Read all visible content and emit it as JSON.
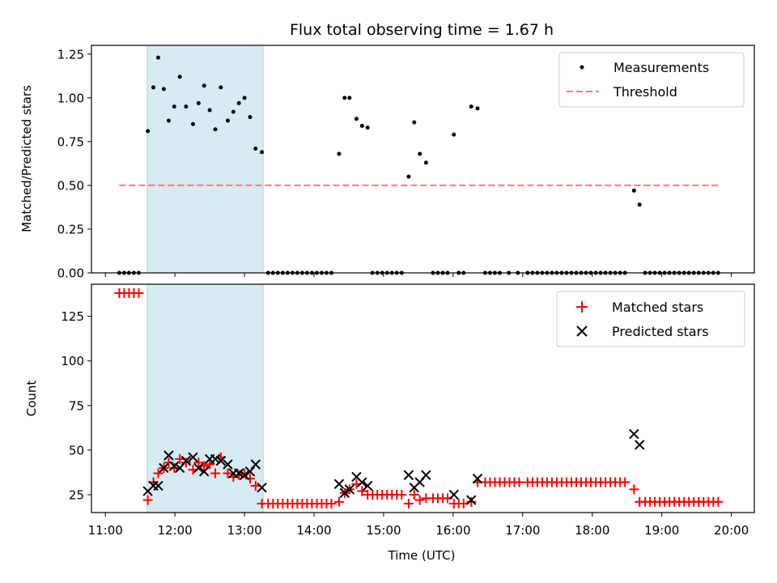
{
  "chart_data": [
    {
      "type": "scatter",
      "title": "Flux total observing time = 1.67 h",
      "ylabel": "Matched/Predicted stars",
      "xlabel": "",
      "ylim": [
        0,
        1.3
      ],
      "yticks": [
        0.0,
        0.25,
        0.5,
        0.75,
        1.0,
        1.25
      ],
      "xticks_hours": [
        11,
        12,
        13,
        14,
        15,
        16,
        17,
        18,
        19,
        20
      ],
      "xlim_hours": [
        10.8,
        20.33
      ],
      "shaded_interval_hours": [
        11.6,
        13.27
      ],
      "legend_position": "top-right",
      "legend": [
        "Measurements",
        "Threshold"
      ],
      "threshold": {
        "name": "Threshold",
        "value": 0.5,
        "x_range_hours": [
          11.2,
          19.85
        ],
        "color": "#f08080"
      },
      "series": [
        {
          "name": "Measurements",
          "color": "#000000",
          "points": [
            [
              11.2,
              0
            ],
            [
              11.27,
              0
            ],
            [
              11.34,
              0
            ],
            [
              11.41,
              0
            ],
            [
              11.48,
              0
            ],
            [
              11.61,
              0.81
            ],
            [
              11.69,
              1.06
            ],
            [
              11.76,
              1.23
            ],
            [
              11.84,
              1.05
            ],
            [
              11.91,
              0.87
            ],
            [
              11.99,
              0.95
            ],
            [
              12.07,
              1.12
            ],
            [
              12.16,
              0.95
            ],
            [
              12.26,
              0.85
            ],
            [
              12.34,
              0.97
            ],
            [
              12.42,
              1.07
            ],
            [
              12.5,
              0.93
            ],
            [
              12.58,
              0.82
            ],
            [
              12.66,
              1.06
            ],
            [
              12.76,
              0.87
            ],
            [
              12.84,
              0.92
            ],
            [
              12.92,
              0.97
            ],
            [
              13.0,
              1.0
            ],
            [
              13.08,
              0.89
            ],
            [
              13.16,
              0.71
            ],
            [
              13.25,
              0.69
            ],
            [
              13.34,
              0
            ],
            [
              13.41,
              0
            ],
            [
              13.48,
              0
            ],
            [
              13.55,
              0
            ],
            [
              13.62,
              0
            ],
            [
              13.69,
              0
            ],
            [
              13.76,
              0
            ],
            [
              13.83,
              0
            ],
            [
              13.9,
              0
            ],
            [
              13.97,
              0
            ],
            [
              14.04,
              0
            ],
            [
              14.11,
              0
            ],
            [
              14.18,
              0
            ],
            [
              14.25,
              0
            ],
            [
              14.36,
              0.68
            ],
            [
              14.44,
              1.0
            ],
            [
              14.51,
              1.0
            ],
            [
              14.61,
              0.88
            ],
            [
              14.69,
              0.84
            ],
            [
              14.77,
              0.83
            ],
            [
              14.84,
              0
            ],
            [
              14.91,
              0
            ],
            [
              14.98,
              0
            ],
            [
              15.05,
              0
            ],
            [
              15.12,
              0
            ],
            [
              15.19,
              0
            ],
            [
              15.26,
              0
            ],
            [
              15.36,
              0.55
            ],
            [
              15.44,
              0.86
            ],
            [
              15.52,
              0.68
            ],
            [
              15.61,
              0.63
            ],
            [
              15.71,
              0
            ],
            [
              15.78,
              0
            ],
            [
              15.85,
              0
            ],
            [
              15.92,
              0
            ],
            [
              16.01,
              0.79
            ],
            [
              16.08,
              0
            ],
            [
              16.15,
              0
            ],
            [
              16.26,
              0.95
            ],
            [
              16.35,
              0.94
            ],
            [
              16.46,
              0
            ],
            [
              16.53,
              0
            ],
            [
              16.6,
              0
            ],
            [
              16.67,
              0
            ],
            [
              16.8,
              0
            ],
            [
              16.93,
              0
            ],
            [
              17.07,
              0
            ],
            [
              17.14,
              0
            ],
            [
              17.21,
              0
            ],
            [
              17.28,
              0
            ],
            [
              17.35,
              0
            ],
            [
              17.42,
              0
            ],
            [
              17.49,
              0
            ],
            [
              17.56,
              0
            ],
            [
              17.63,
              0
            ],
            [
              17.7,
              0
            ],
            [
              17.77,
              0
            ],
            [
              17.84,
              0
            ],
            [
              17.91,
              0
            ],
            [
              17.98,
              0
            ],
            [
              18.05,
              0
            ],
            [
              18.12,
              0
            ],
            [
              18.19,
              0
            ],
            [
              18.26,
              0
            ],
            [
              18.33,
              0
            ],
            [
              18.4,
              0
            ],
            [
              18.47,
              0
            ],
            [
              18.6,
              0.47
            ],
            [
              18.68,
              0.39
            ],
            [
              18.76,
              0
            ],
            [
              18.83,
              0
            ],
            [
              18.9,
              0
            ],
            [
              18.97,
              0
            ],
            [
              19.04,
              0
            ],
            [
              19.11,
              0
            ],
            [
              19.18,
              0
            ],
            [
              19.25,
              0
            ],
            [
              19.32,
              0
            ],
            [
              19.39,
              0
            ],
            [
              19.46,
              0
            ],
            [
              19.53,
              0
            ],
            [
              19.6,
              0
            ],
            [
              19.67,
              0
            ],
            [
              19.74,
              0
            ],
            [
              19.81,
              0
            ]
          ]
        }
      ]
    },
    {
      "type": "scatter",
      "title": "",
      "xlabel": "Time (UTC)",
      "ylabel": "Count",
      "ylim": [
        15,
        143
      ],
      "yticks": [
        25,
        50,
        75,
        100,
        125
      ],
      "xticks_hours": [
        11,
        12,
        13,
        14,
        15,
        16,
        17,
        18,
        19,
        20
      ],
      "xtick_labels": [
        "11:00",
        "12:00",
        "13:00",
        "14:00",
        "15:00",
        "16:00",
        "17:00",
        "18:00",
        "19:00",
        "20:00"
      ],
      "xlim_hours": [
        10.8,
        20.33
      ],
      "shaded_interval_hours": [
        11.6,
        13.27
      ],
      "legend_position": "top-right",
      "legend": [
        "Matched stars",
        "Predicted stars"
      ],
      "series": [
        {
          "name": "Matched stars",
          "marker": "+",
          "color": "#ff0000",
          "points": [
            [
              11.2,
              138
            ],
            [
              11.27,
              138
            ],
            [
              11.34,
              138
            ],
            [
              11.41,
              138
            ],
            [
              11.48,
              138
            ],
            [
              11.61,
              22
            ],
            [
              11.69,
              32
            ],
            [
              11.76,
              37
            ],
            [
              11.84,
              40
            ],
            [
              11.91,
              43
            ],
            [
              11.99,
              40
            ],
            [
              12.07,
              45
            ],
            [
              12.16,
              43
            ],
            [
              12.26,
              39
            ],
            [
              12.34,
              43
            ],
            [
              12.42,
              41
            ],
            [
              12.5,
              42
            ],
            [
              12.58,
              37
            ],
            [
              12.66,
              46
            ],
            [
              12.76,
              37
            ],
            [
              12.84,
              35
            ],
            [
              12.92,
              36
            ],
            [
              13.0,
              37
            ],
            [
              13.08,
              34
            ],
            [
              13.16,
              30
            ],
            [
              13.25,
              20
            ],
            [
              13.34,
              20
            ],
            [
              13.41,
              20
            ],
            [
              13.48,
              20
            ],
            [
              13.55,
              20
            ],
            [
              13.62,
              20
            ],
            [
              13.69,
              20
            ],
            [
              13.76,
              20
            ],
            [
              13.83,
              20
            ],
            [
              13.9,
              20
            ],
            [
              13.97,
              20
            ],
            [
              14.04,
              20
            ],
            [
              14.11,
              20
            ],
            [
              14.18,
              20
            ],
            [
              14.25,
              20
            ],
            [
              14.36,
              21
            ],
            [
              14.44,
              26
            ],
            [
              14.51,
              28
            ],
            [
              14.61,
              31
            ],
            [
              14.69,
              27
            ],
            [
              14.77,
              25
            ],
            [
              14.84,
              25
            ],
            [
              14.91,
              25
            ],
            [
              14.98,
              25
            ],
            [
              15.05,
              25
            ],
            [
              15.12,
              25
            ],
            [
              15.19,
              25
            ],
            [
              15.26,
              25
            ],
            [
              15.36,
              20
            ],
            [
              15.44,
              25
            ],
            [
              15.52,
              22
            ],
            [
              15.61,
              23
            ],
            [
              15.71,
              23
            ],
            [
              15.78,
              23
            ],
            [
              15.85,
              23
            ],
            [
              15.92,
              23
            ],
            [
              16.01,
              20
            ],
            [
              16.08,
              20
            ],
            [
              16.15,
              20
            ],
            [
              16.26,
              21
            ],
            [
              16.35,
              32
            ],
            [
              16.46,
              32
            ],
            [
              16.53,
              32
            ],
            [
              16.6,
              32
            ],
            [
              16.67,
              32
            ],
            [
              16.74,
              32
            ],
            [
              16.81,
              32
            ],
            [
              16.88,
              32
            ],
            [
              16.95,
              32
            ],
            [
              17.07,
              32
            ],
            [
              17.14,
              32
            ],
            [
              17.21,
              32
            ],
            [
              17.28,
              32
            ],
            [
              17.35,
              32
            ],
            [
              17.42,
              32
            ],
            [
              17.49,
              32
            ],
            [
              17.56,
              32
            ],
            [
              17.63,
              32
            ],
            [
              17.7,
              32
            ],
            [
              17.77,
              32
            ],
            [
              17.84,
              32
            ],
            [
              17.91,
              32
            ],
            [
              17.98,
              32
            ],
            [
              18.05,
              32
            ],
            [
              18.12,
              32
            ],
            [
              18.19,
              32
            ],
            [
              18.26,
              32
            ],
            [
              18.33,
              32
            ],
            [
              18.4,
              32
            ],
            [
              18.47,
              32
            ],
            [
              18.6,
              28
            ],
            [
              18.68,
              21
            ],
            [
              18.76,
              21
            ],
            [
              18.83,
              21
            ],
            [
              18.9,
              21
            ],
            [
              18.97,
              21
            ],
            [
              19.04,
              21
            ],
            [
              19.11,
              21
            ],
            [
              19.18,
              21
            ],
            [
              19.25,
              21
            ],
            [
              19.32,
              21
            ],
            [
              19.39,
              21
            ],
            [
              19.46,
              21
            ],
            [
              19.53,
              21
            ],
            [
              19.6,
              21
            ],
            [
              19.67,
              21
            ],
            [
              19.74,
              21
            ],
            [
              19.81,
              21
            ]
          ]
        },
        {
          "name": "Predicted stars",
          "marker": "x",
          "color": "#000000",
          "points": [
            [
              11.61,
              27
            ],
            [
              11.69,
              30
            ],
            [
              11.76,
              30
            ],
            [
              11.84,
              40
            ],
            [
              11.91,
              47
            ],
            [
              11.99,
              41
            ],
            [
              12.07,
              40
            ],
            [
              12.16,
              44
            ],
            [
              12.26,
              46
            ],
            [
              12.34,
              40
            ],
            [
              12.42,
              38
            ],
            [
              12.5,
              45
            ],
            [
              12.58,
              45
            ],
            [
              12.66,
              44
            ],
            [
              12.76,
              42
            ],
            [
              12.84,
              37
            ],
            [
              12.92,
              37
            ],
            [
              13.0,
              36
            ],
            [
              13.08,
              38
            ],
            [
              13.16,
              42
            ],
            [
              13.25,
              29
            ],
            [
              14.36,
              31
            ],
            [
              14.44,
              26
            ],
            [
              14.51,
              28
            ],
            [
              14.61,
              35
            ],
            [
              14.69,
              32
            ],
            [
              14.77,
              30
            ],
            [
              15.36,
              36
            ],
            [
              15.44,
              29
            ],
            [
              15.52,
              32
            ],
            [
              15.61,
              36
            ],
            [
              16.01,
              25
            ],
            [
              16.26,
              22
            ],
            [
              16.35,
              34
            ],
            [
              18.6,
              59
            ],
            [
              18.68,
              53
            ]
          ]
        }
      ]
    }
  ]
}
